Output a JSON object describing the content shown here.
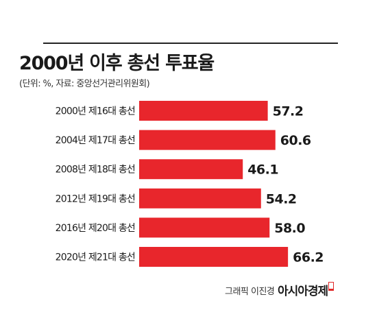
{
  "header": {
    "title": "2000년 이후 총선 투표율",
    "subtitle": "(단위: %, 자료: 중앙선거관리위원회)"
  },
  "footer": {
    "credit": "그래픽 이진경",
    "brand": "아시아경제"
  },
  "colors": {
    "bar": "#e8262c",
    "text": "#1a1a1a",
    "rule": "#222222"
  },
  "chart_data": {
    "type": "bar",
    "orientation": "horizontal",
    "categories": [
      "2000년 제16대 총선",
      "2004년 제17대 총선",
      "2008년 제18대 총선",
      "2012년 제19대 총선",
      "2016년 제20대 총선",
      "2020년 제21대 총선"
    ],
    "values": [
      57.2,
      60.6,
      46.1,
      54.2,
      58.0,
      66.2
    ],
    "value_labels": [
      "57.2",
      "60.6",
      "46.1",
      "54.2",
      "58.0",
      "66.2"
    ],
    "grid": false,
    "legend": "none"
  }
}
